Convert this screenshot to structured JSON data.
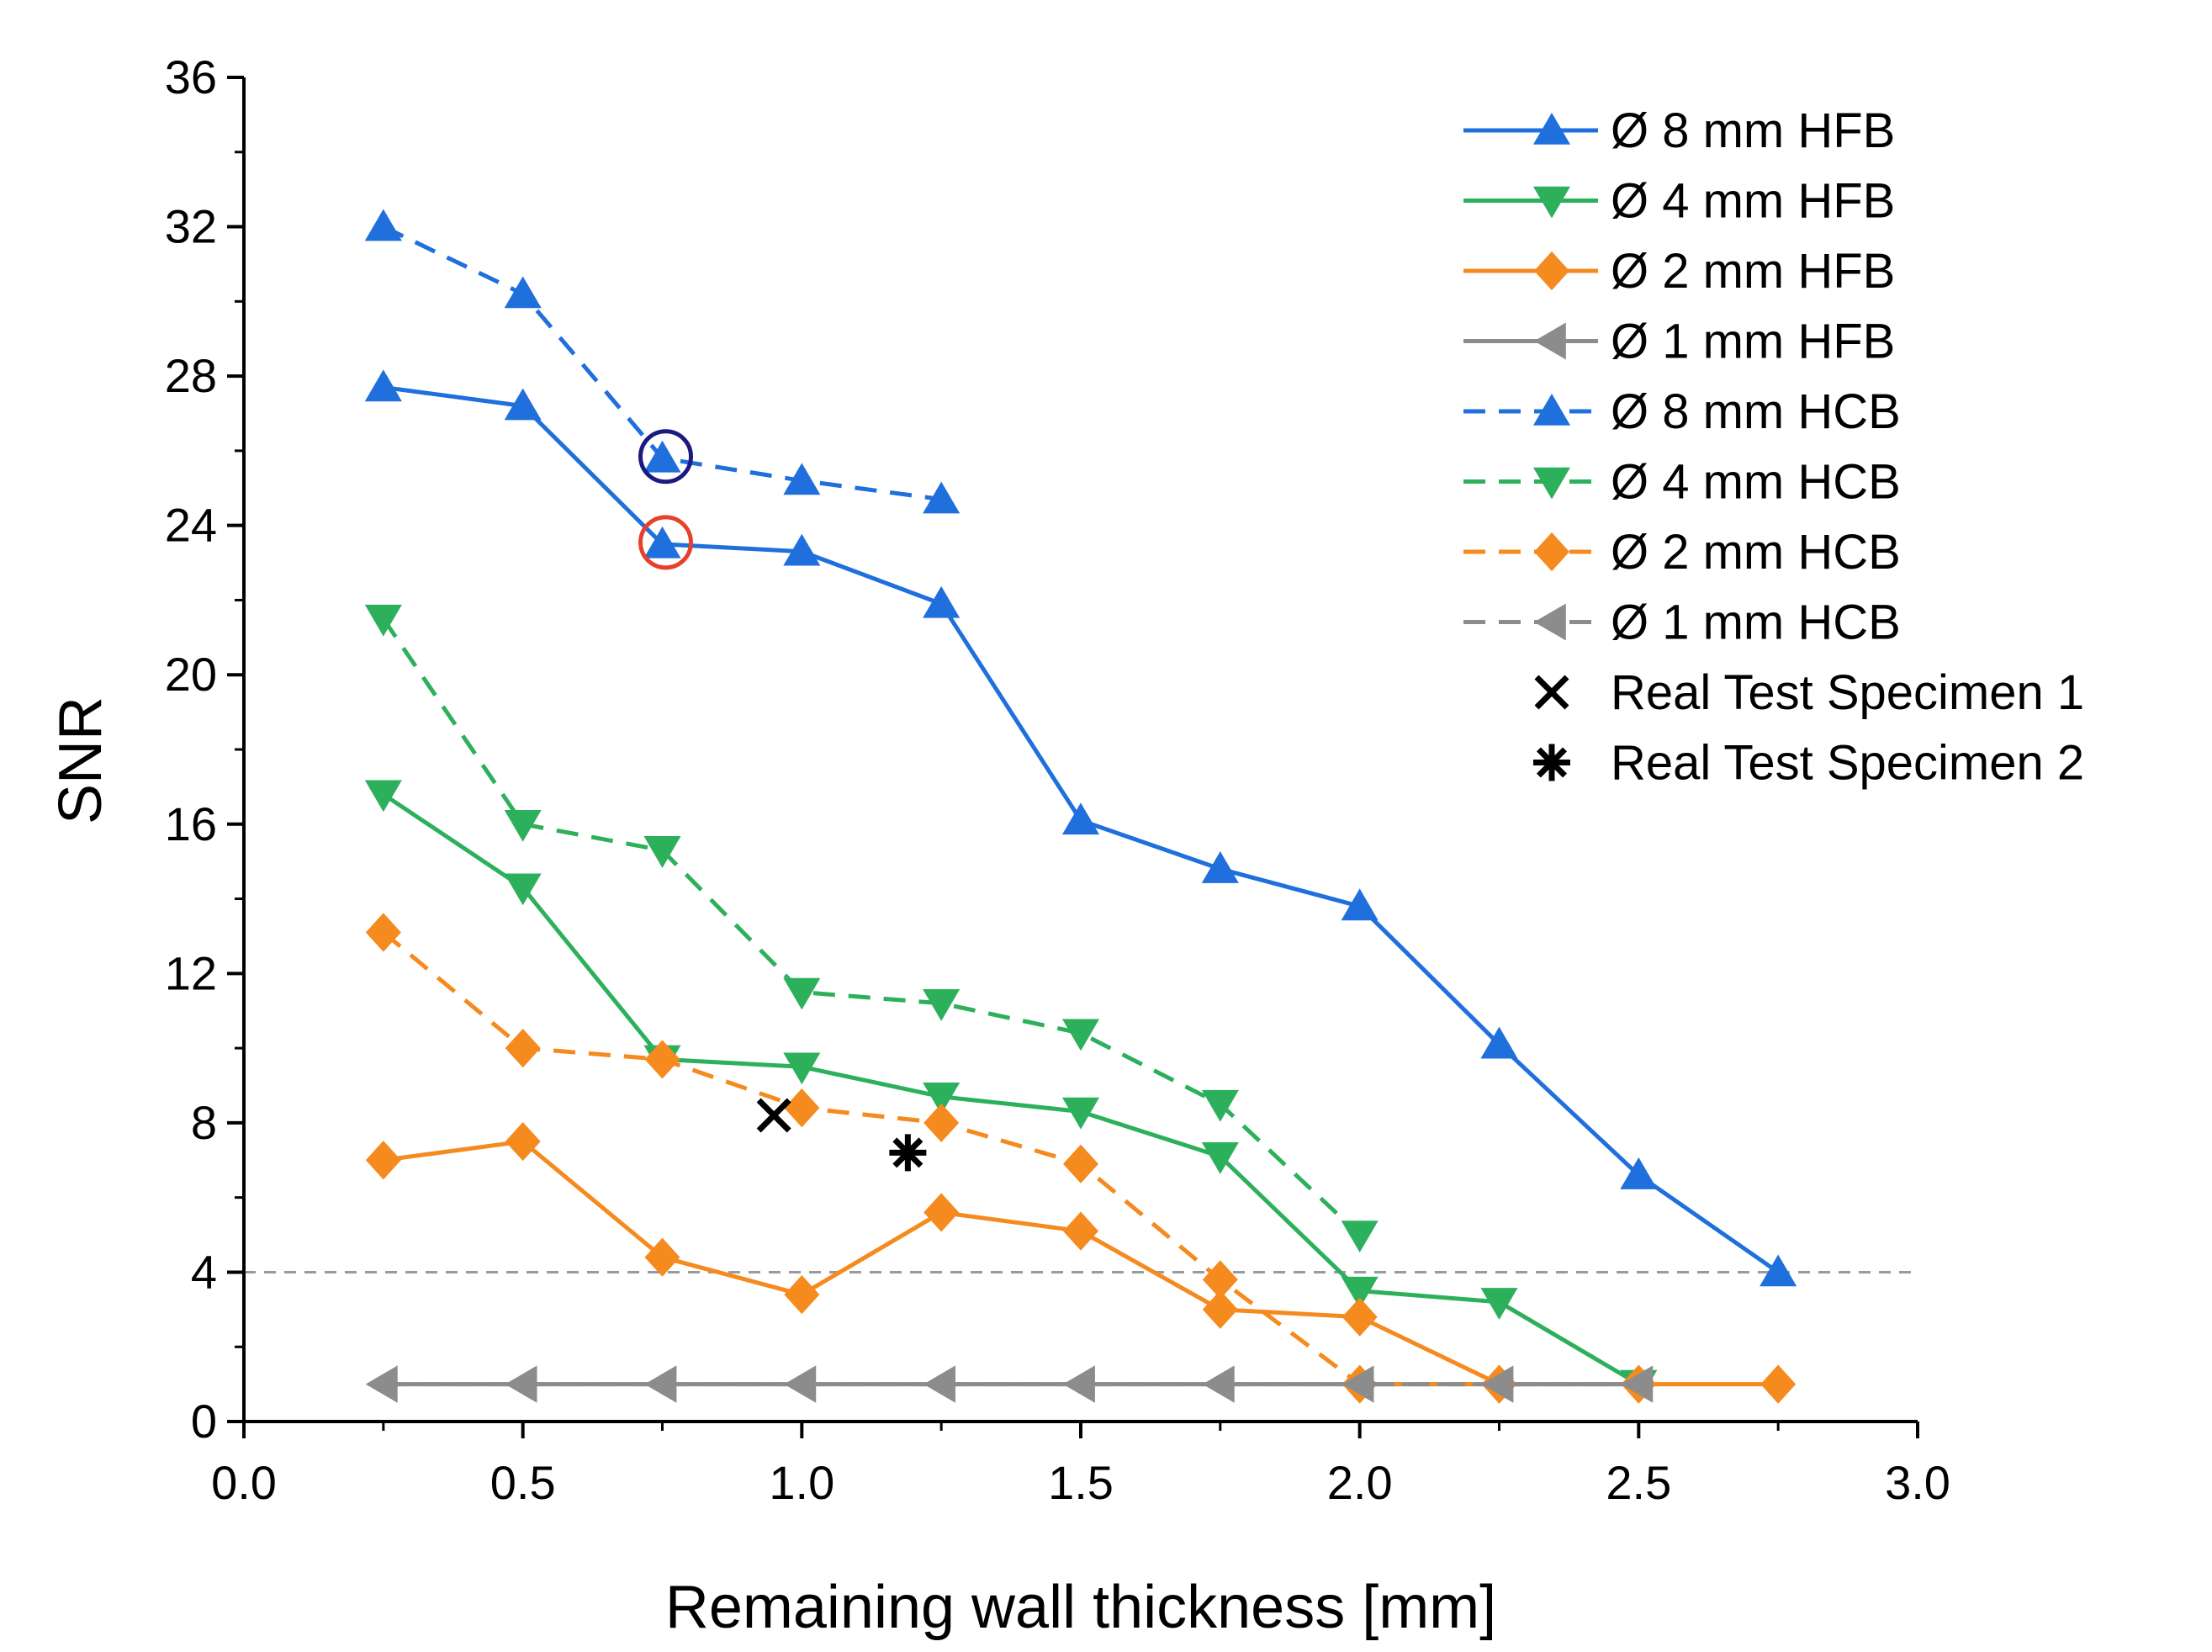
{
  "chart_data": {
    "type": "line",
    "title": "",
    "xlabel": "Remaining wall thickness [mm]",
    "ylabel": "SNR",
    "xlim": [
      0.0,
      3.0
    ],
    "ylim": [
      0,
      36
    ],
    "xticks": [
      "0.0",
      "0.5",
      "1.0",
      "1.5",
      "2.0",
      "2.5",
      "3.0"
    ],
    "yticks": [
      "0",
      "4",
      "8",
      "12",
      "16",
      "20",
      "24",
      "28",
      "32",
      "36"
    ],
    "threshold_line": {
      "y": 4,
      "style": "dashed",
      "color": "#9a9a9a"
    },
    "legend_position": "top-right",
    "series": [
      {
        "name": "Ø 8 mm HFB",
        "color": "#1f6fdc",
        "marker": "triangle-up",
        "dash": "solid",
        "x": [
          0.25,
          0.5,
          0.75,
          1.0,
          1.25,
          1.5,
          1.75,
          2.0,
          2.25,
          2.5,
          2.75
        ],
        "y": [
          27.7,
          27.2,
          23.5,
          23.3,
          21.9,
          16.1,
          14.8,
          13.8,
          10.1,
          6.6,
          4.0
        ]
      },
      {
        "name": "Ø 4 mm HFB",
        "color": "#2db05b",
        "marker": "triangle-down",
        "dash": "solid",
        "x": [
          0.25,
          0.5,
          0.75,
          1.0,
          1.25,
          1.5,
          1.75,
          2.0,
          2.25,
          2.5
        ],
        "y": [
          16.8,
          14.3,
          9.7,
          9.5,
          8.7,
          8.3,
          7.1,
          3.5,
          3.2,
          1.0
        ]
      },
      {
        "name": "Ø 2 mm HFB",
        "color": "#f58a1f",
        "marker": "diamond",
        "dash": "solid",
        "x": [
          0.25,
          0.5,
          0.75,
          1.0,
          1.25,
          1.5,
          1.75,
          2.0,
          2.25,
          2.5,
          2.75
        ],
        "y": [
          7.0,
          7.5,
          4.4,
          3.4,
          5.6,
          5.1,
          3.0,
          2.8,
          1.0,
          1.0,
          1.0
        ]
      },
      {
        "name": "Ø 1 mm HFB",
        "color": "#8c8c8c",
        "marker": "triangle-left",
        "dash": "solid",
        "x": [
          0.25,
          0.5,
          0.75,
          1.0,
          1.25,
          1.5,
          1.75,
          2.0,
          2.25,
          2.5
        ],
        "y": [
          1.0,
          1.0,
          1.0,
          1.0,
          1.0,
          1.0,
          1.0,
          1.0,
          1.0,
          1.0
        ]
      },
      {
        "name": "Ø 8 mm HCB",
        "color": "#1f6fdc",
        "marker": "triangle-up",
        "dash": "dashed",
        "x": [
          0.25,
          0.5,
          0.75,
          1.0,
          1.25
        ],
        "y": [
          32.0,
          30.2,
          25.8,
          25.2,
          24.7
        ]
      },
      {
        "name": "Ø 4 mm HCB",
        "color": "#2db05b",
        "marker": "triangle-down",
        "dash": "dashed",
        "x": [
          0.25,
          0.5,
          0.75,
          1.0,
          1.25,
          1.5,
          1.75,
          2.0
        ],
        "y": [
          21.5,
          16.0,
          15.3,
          11.5,
          11.2,
          10.4,
          8.5,
          5.0
        ]
      },
      {
        "name": "Ø 2 mm HCB",
        "color": "#f58a1f",
        "marker": "diamond",
        "dash": "dashed",
        "x": [
          0.25,
          0.5,
          0.75,
          1.0,
          1.25,
          1.5,
          1.75,
          2.0,
          2.25
        ],
        "y": [
          13.1,
          10.0,
          9.7,
          8.4,
          8.0,
          6.9,
          3.8,
          1.0,
          1.0
        ]
      },
      {
        "name": "Ø 1 mm HCB",
        "color": "#8c8c8c",
        "marker": "triangle-left",
        "dash": "dashed",
        "x": [
          0.25,
          0.5,
          0.75,
          1.0,
          1.25,
          1.5,
          1.75,
          2.0,
          2.25,
          2.5
        ],
        "y": [
          1.0,
          1.0,
          1.0,
          1.0,
          1.0,
          1.0,
          1.0,
          1.0,
          1.0,
          1.0
        ]
      }
    ],
    "specimens": [
      {
        "name": "Real Test Specimen 1",
        "marker": "cross",
        "color": "#000000",
        "x": 0.95,
        "y": 8.2
      },
      {
        "name": "Real Test Specimen 2",
        "marker": "asterisk",
        "color": "#000000",
        "x": 1.19,
        "y": 7.2
      }
    ],
    "annotations": [
      {
        "type": "circle",
        "color": "#1a1a80",
        "x": 0.75,
        "y": 25.8
      },
      {
        "type": "circle",
        "color": "#e8402a",
        "x": 0.75,
        "y": 23.5
      }
    ]
  }
}
